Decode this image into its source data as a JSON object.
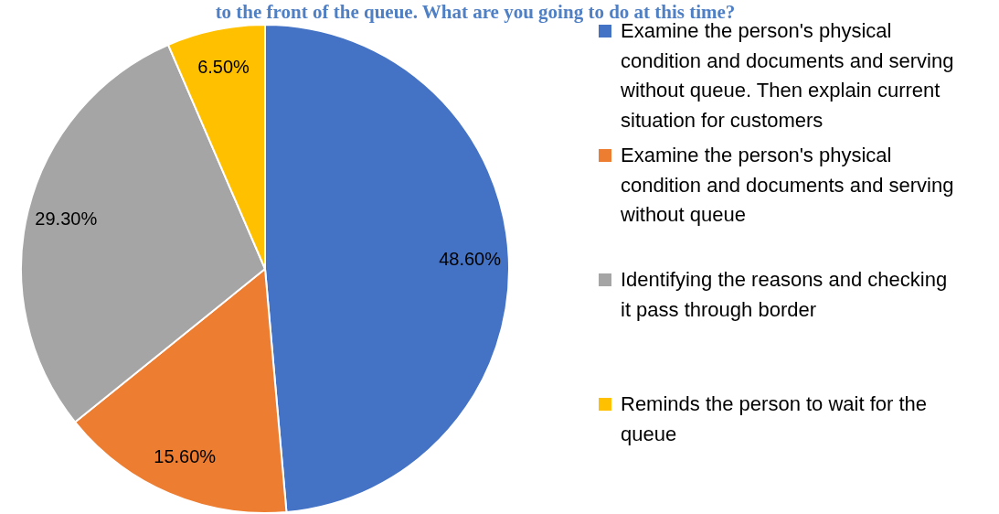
{
  "chart_data": {
    "type": "pie",
    "title": "to the front of the queue. What are you going to do at this time?",
    "categories": [
      "Examine the person's physical condition and documents and serving without queue. Then explain current situation for customers",
      "Examine the person's physical condition and documents and serving without queue",
      "Identifying the reasons and checking it pass through border",
      "Reminds the person to wait for the queue"
    ],
    "values": [
      48.6,
      15.6,
      29.3,
      6.5
    ],
    "colors": [
      "#4472c4",
      "#ed7d31",
      "#a5a5a5",
      "#ffc000"
    ],
    "value_labels": [
      "48.60%",
      "15.60%",
      "29.30%",
      "6.50%"
    ],
    "legend": "right"
  }
}
